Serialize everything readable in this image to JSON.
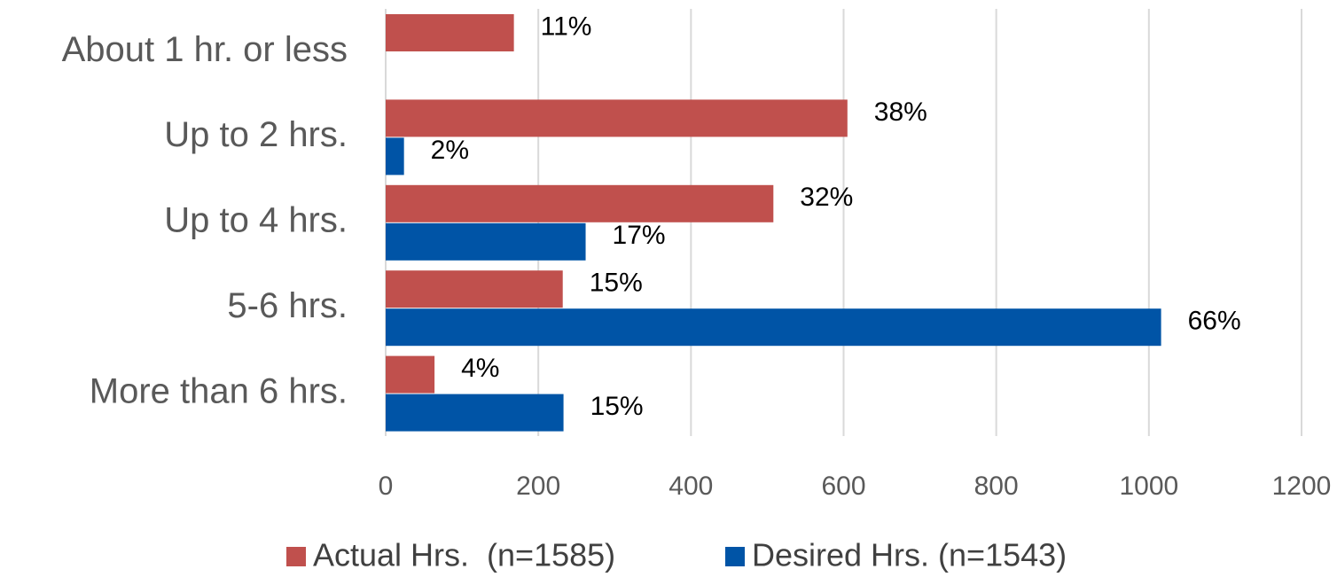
{
  "chart_data": {
    "type": "bar",
    "orientation": "horizontal",
    "categories": [
      "About 1 hr. or less",
      "Up to 2 hrs.",
      "Up to 4 hrs.",
      "5-6 hrs.",
      "More than 6 hrs."
    ],
    "series": [
      {
        "name": "Actual Hrs.  (n=1585)",
        "color": "#c0504d",
        "values": [
          168,
          605,
          508,
          232,
          64
        ],
        "value_labels": [
          "11%",
          "38%",
          "32%",
          "15%",
          "4%"
        ]
      },
      {
        "name": "Desired Hrs. (n=1543)",
        "color": "#0054a6",
        "values": [
          null,
          24,
          262,
          1016,
          233
        ],
        "value_labels": [
          null,
          "2%",
          "17%",
          "66%",
          "15%"
        ]
      }
    ],
    "xlim": [
      0,
      1200
    ],
    "xticks": [
      0,
      200,
      400,
      600,
      800,
      1000,
      1200
    ],
    "grid": true,
    "legend": "bottom"
  }
}
